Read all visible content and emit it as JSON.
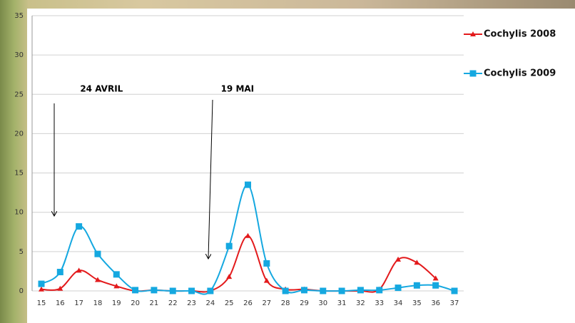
{
  "chart_data": {
    "type": "line",
    "categories": [
      "15",
      "16",
      "17",
      "18",
      "19",
      "20",
      "21",
      "22",
      "23",
      "24",
      "25",
      "26",
      "27",
      "28",
      "29",
      "30",
      "31",
      "32",
      "33",
      "34",
      "35",
      "36",
      "37"
    ],
    "series": [
      {
        "name": "Cochylis 2008",
        "color": "#e31a1c",
        "marker": "triangle",
        "values": [
          0.2,
          0.3,
          2.6,
          1.4,
          0.6,
          0,
          0.1,
          0,
          0,
          0,
          1.8,
          7,
          1.3,
          0.2,
          0.2,
          0,
          0,
          0,
          0.2,
          4,
          3.6,
          1.6,
          null
        ]
      },
      {
        "name": "Cochylis 2009",
        "color": "#15a8e0",
        "marker": "square",
        "values": [
          0.9,
          2.4,
          8.2,
          4.7,
          2.1,
          0.1,
          0.1,
          0,
          0,
          0,
          5.7,
          13.5,
          3.5,
          0,
          0.1,
          0,
          0,
          0.1,
          0.1,
          0.4,
          0.7,
          0.7,
          0
        ]
      }
    ],
    "ylim": [
      0,
      35
    ],
    "yticks": [
      0,
      5,
      10,
      15,
      20,
      25,
      30,
      35
    ],
    "grid": true,
    "legend": "top-right",
    "annotations": [
      {
        "text": "24 AVRIL",
        "category": 1
      },
      {
        "text": "19 MAI",
        "category": 9
      }
    ]
  }
}
